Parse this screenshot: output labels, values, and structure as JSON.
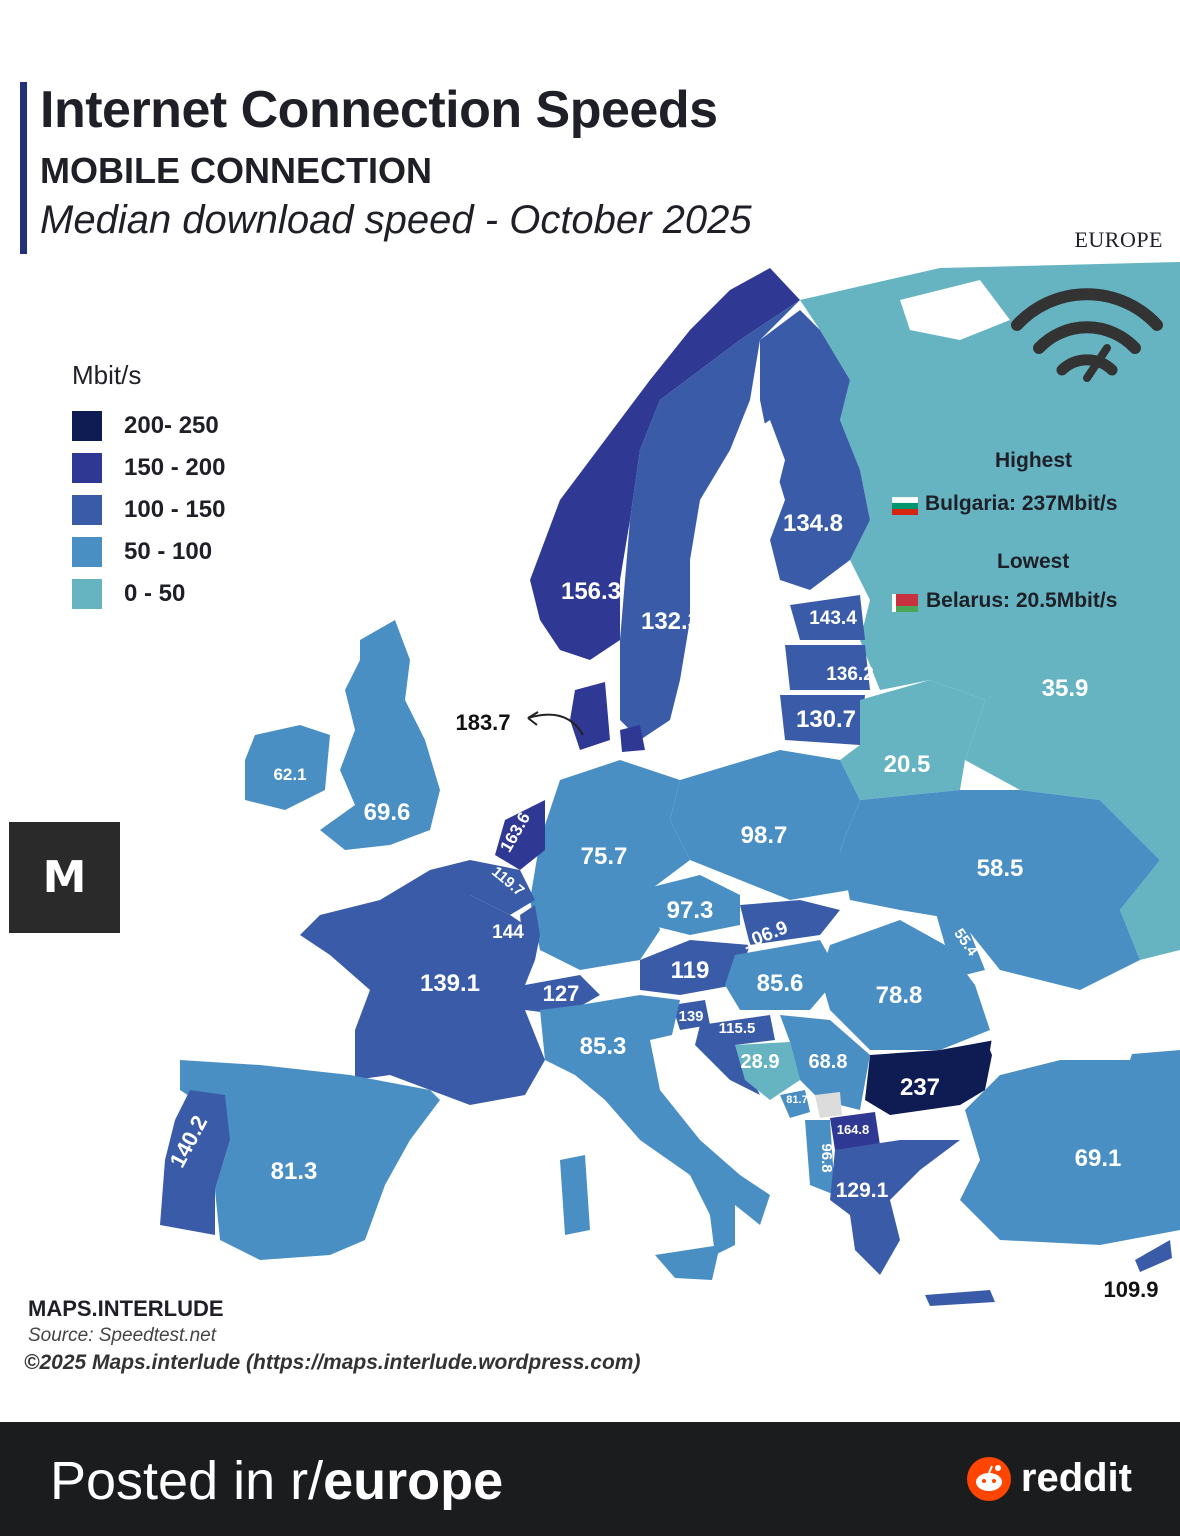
{
  "header": {
    "title": "Internet Connection Speeds",
    "subtitle": "MOBILE CONNECTION",
    "description": "Median download speed - October 2025",
    "region": "EUROPE"
  },
  "legend": {
    "title": "Mbit/s",
    "items": [
      {
        "label": "200- 250",
        "color": "#0f1c54"
      },
      {
        "label": "150 - 200",
        "color": "#2f3994"
      },
      {
        "label": "100 - 150",
        "color": "#3a5ca8"
      },
      {
        "label": "50 - 100",
        "color": "#4a8fc4"
      },
      {
        "label": "0 - 50",
        "color": "#66b4c2"
      }
    ]
  },
  "highlights": {
    "highest_heading": "Highest",
    "highest_text": "Bulgaria: 237Mbit/s",
    "lowest_heading": "Lowest",
    "lowest_text": "Belarus: 20.5Mbit/s"
  },
  "map_labels": [
    {
      "text": "134.8"
    },
    {
      "text": "132.3"
    },
    {
      "text": "156.3"
    },
    {
      "text": "143.4"
    },
    {
      "text": "136.2"
    },
    {
      "text": "130.7"
    },
    {
      "text": "35.9"
    },
    {
      "text": "20.5"
    },
    {
      "text": "183.7"
    },
    {
      "text": "62.1"
    },
    {
      "text": "69.6"
    },
    {
      "text": "163.6"
    },
    {
      "text": "119.7"
    },
    {
      "text": "75.7"
    },
    {
      "text": "98.7"
    },
    {
      "text": "58.5"
    },
    {
      "text": "97.3"
    },
    {
      "text": "144"
    },
    {
      "text": "106.9"
    },
    {
      "text": "55.4"
    },
    {
      "text": "139.1"
    },
    {
      "text": "127"
    },
    {
      "text": "119"
    },
    {
      "text": "85.6"
    },
    {
      "text": "78.8"
    },
    {
      "text": "139"
    },
    {
      "text": "115.5"
    },
    {
      "text": "85.3"
    },
    {
      "text": "28.9"
    },
    {
      "text": "68.8"
    },
    {
      "text": "237"
    },
    {
      "text": "81.7"
    },
    {
      "text": "164.8"
    },
    {
      "text": "96.8"
    },
    {
      "text": "129.1"
    },
    {
      "text": "140.2"
    },
    {
      "text": "81.3"
    },
    {
      "text": "69.1"
    },
    {
      "text": "109.9"
    }
  ],
  "footer": {
    "brand": "MAPS.INTERLUDE",
    "source": "Source: Speedtest.net",
    "copyright": "©2025 Maps.interlude (https://maps.interlude.wordpress.com)"
  },
  "reddit": {
    "posted_prefix": "Posted in r/",
    "subreddit": "europe",
    "brand": "reddit",
    "brand_color": "#ff4500"
  },
  "icons": {
    "logo": "maps-interlude-logo-icon",
    "wifi": "wifi-speed-icon"
  }
}
